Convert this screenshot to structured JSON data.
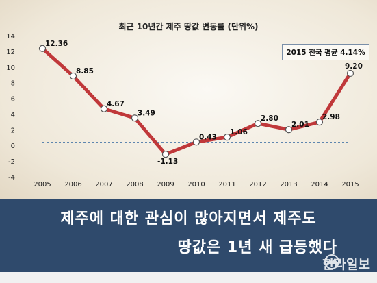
{
  "chart_data": {
    "type": "line",
    "title": "최근 10년간 제주 땅값 변동률 (단위%)",
    "categories": [
      "2005",
      "2006",
      "2007",
      "2008",
      "2009",
      "2010",
      "2011",
      "2012",
      "2013",
      "2014",
      "2015"
    ],
    "values": [
      12.36,
      8.85,
      4.67,
      3.49,
      -1.13,
      0.43,
      1.06,
      2.8,
      2.01,
      2.98,
      9.2
    ],
    "value_labels": [
      "12.36",
      "8.85",
      "4.67",
      "3.49",
      "-1.13",
      "0.43",
      "1.06",
      "2.80",
      "2.01",
      "2.98",
      "9.20"
    ],
    "yticks": [
      "14",
      "12",
      "10",
      "8",
      "6",
      "4",
      "2",
      "0",
      "-2",
      "-4"
    ],
    "ylim": [
      -4,
      14
    ],
    "reference_line": {
      "value": 0.4,
      "style": "dashed"
    },
    "annotation": "2015 전국 평균 4.14%",
    "line_color": "#c0383a",
    "reference_color": "#4a78a8"
  },
  "headline": {
    "line1": "제주에 대한 관심이 많아지면서 제주도",
    "line2": "땅값은 1년 새 급등했다"
  },
  "logo": {
    "text": "한라일보"
  },
  "colors": {
    "banner": "#2f4a6c"
  }
}
